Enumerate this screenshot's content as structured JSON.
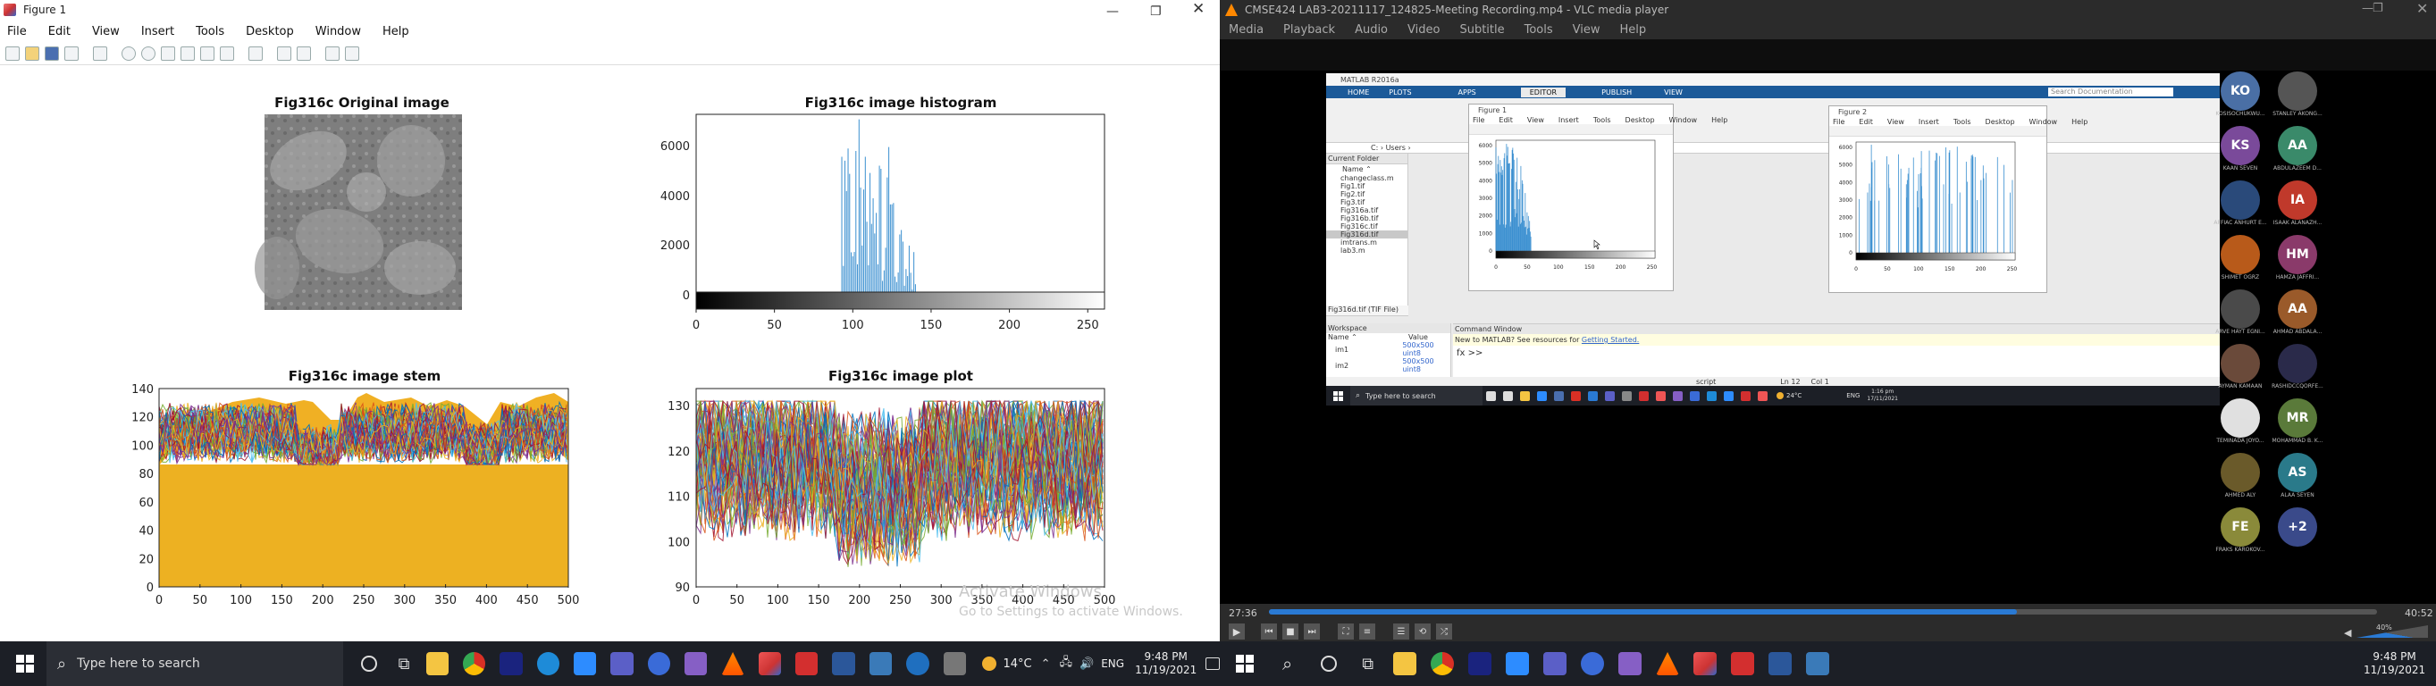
{
  "figure": {
    "title": "Figure 1",
    "menu": [
      "File",
      "Edit",
      "View",
      "Insert",
      "Tools",
      "Desktop",
      "Window",
      "Help"
    ],
    "plots": {
      "orig_title": "Fig316c Original image",
      "hist_title": "Fig316c image histogram",
      "stem_title": "Fig316c image stem",
      "plot_title": "Fig316c image plot"
    },
    "hist_y": [
      "6000",
      "4000",
      "2000",
      "0"
    ],
    "gray_x": [
      "0",
      "50",
      "100",
      "150",
      "200",
      "250"
    ],
    "stem_y": [
      "140",
      "120",
      "100",
      "80",
      "60",
      "40",
      "20",
      "0"
    ],
    "idx_x": [
      "0",
      "50",
      "100",
      "150",
      "200",
      "250",
      "300",
      "350",
      "400",
      "450",
      "500"
    ],
    "plot_y": [
      "130",
      "120",
      "110",
      "100",
      "90"
    ],
    "watermark1": "Activate Windows",
    "watermark2": "Go to Settings to activate Windows."
  },
  "vlc": {
    "title": "CMSE424 LAB3-20211117_124825-Meeting Recording.mp4 - VLC media player",
    "menu": [
      "Media",
      "Playback",
      "Audio",
      "Video",
      "Subtitle",
      "Tools",
      "View",
      "Help"
    ],
    "time_elapsed": "27:36",
    "time_total": "40:52",
    "progress": 0.675,
    "volume": "40%"
  },
  "inner": {
    "matlab_title": "MATLAB R2016a",
    "tabs": [
      "HOME",
      "PLOTS",
      "APPS",
      "EDITOR",
      "PUBLISH",
      "VIEW"
    ],
    "search": "Search Documentation",
    "path": "C: › Users ›",
    "current_folder": "Current Folder",
    "name_col": "Name ⌃",
    "files": [
      "changeclass.m",
      "Fig1.tif",
      "Fig2.tif",
      "Fig3.tif",
      "Fig316a.tif",
      "Fig316b.tif",
      "Fig316c.tif",
      "Fig316d.tif",
      "imtrans.m",
      "lab3.m"
    ],
    "file_detail": "Fig316d.tif (TIF File)",
    "workspace": "Workspace",
    "ws_name": "Name ⌃",
    "ws_value": "Value",
    "ws_vars": [
      {
        "n": "im1",
        "v": "500x500 uint8"
      },
      {
        "n": "im2",
        "v": "500x500 uint8"
      }
    ],
    "cmd_title": "Command Window",
    "cmd_text": "New to MATLAB? See resources for",
    "cmd_link": "Getting Started.",
    "prompt": "fx >>",
    "status_script": "script",
    "status_ln": "Ln 12",
    "status_col": "Col 1",
    "fig1_title": "Figure 1",
    "fig2_title": "Figure 2",
    "fig_menu": [
      "File",
      "Edit",
      "View",
      "Insert",
      "Tools",
      "Desktop",
      "Window",
      "Help"
    ],
    "f1_y": [
      "6000",
      "5000",
      "4000",
      "3000",
      "2000",
      "1000",
      "0"
    ],
    "f1_x": [
      "0",
      "50",
      "100",
      "150",
      "200",
      "250"
    ],
    "f2_y": [
      "6000",
      "5000",
      "4000",
      "3000",
      "2000",
      "1000",
      "0"
    ],
    "f2_x": [
      "0",
      "50",
      "100",
      "150",
      "200",
      "250"
    ],
    "task_search": "Type here to search",
    "temp": "24°C",
    "lang": "ENG",
    "time": "1:16 pm",
    "date": "17/11/2021"
  },
  "participants": [
    {
      "i": "KO",
      "c": "#4a6fa5",
      "n": "KOSISOCHUKWU..."
    },
    {
      "i": "",
      "c": "#555",
      "n": "STANLEY AKONG..."
    },
    {
      "i": "KS",
      "c": "#7a4a9a",
      "n": "KAAN SEVEN"
    },
    {
      "i": "AA",
      "c": "#3a8a6a",
      "n": "ABDULAZEEM D..."
    },
    {
      "i": "",
      "c": "#2a4a7a",
      "n": "AFFIAC ANHURT E..."
    },
    {
      "i": "IA",
      "c": "#c0392b",
      "n": "ISAAK ALANAZH..."
    },
    {
      "i": "",
      "c": "#b85a1a",
      "n": "SHIMET OGRZ"
    },
    {
      "i": "HM",
      "c": "#8a3a6a",
      "n": "HAMZA JAFFRI..."
    },
    {
      "i": "",
      "c": "#4a4a4a",
      "n": "ARVE HAYT EGNI..."
    },
    {
      "i": "AA",
      "c": "#9a5a2a",
      "n": "AHMAD ABDALA..."
    },
    {
      "i": "",
      "c": "#6a4a3a",
      "n": "AYMAN KAMAAN"
    },
    {
      "i": "",
      "c": "#2a2a4a",
      "n": "RASHIDCCQORFE..."
    },
    {
      "i": "",
      "c": "#e0e0e0",
      "n": "TEMINADA JOYO..."
    },
    {
      "i": "MR",
      "c": "#5a7a3a",
      "n": "MOHAMMAD B. K..."
    },
    {
      "i": "",
      "c": "#6a5a2a",
      "n": "AHMED ALY"
    },
    {
      "i": "AS",
      "c": "#2a7a8a",
      "n": "ALAA SEYEN"
    },
    {
      "i": "FE",
      "c": "#8a8a3a",
      "n": "FRAKS KAROKOV..."
    },
    {
      "i": "+2",
      "c": "#3a4a8a",
      "n": ""
    }
  ],
  "taskbar": {
    "search": "Type here to search",
    "temp": "14°C",
    "lang": "ENG",
    "time": "9:48 PM",
    "date": "11/19/2021"
  },
  "taskbar2": {
    "time": "9:48 PM",
    "date": "11/19/2021"
  }
}
